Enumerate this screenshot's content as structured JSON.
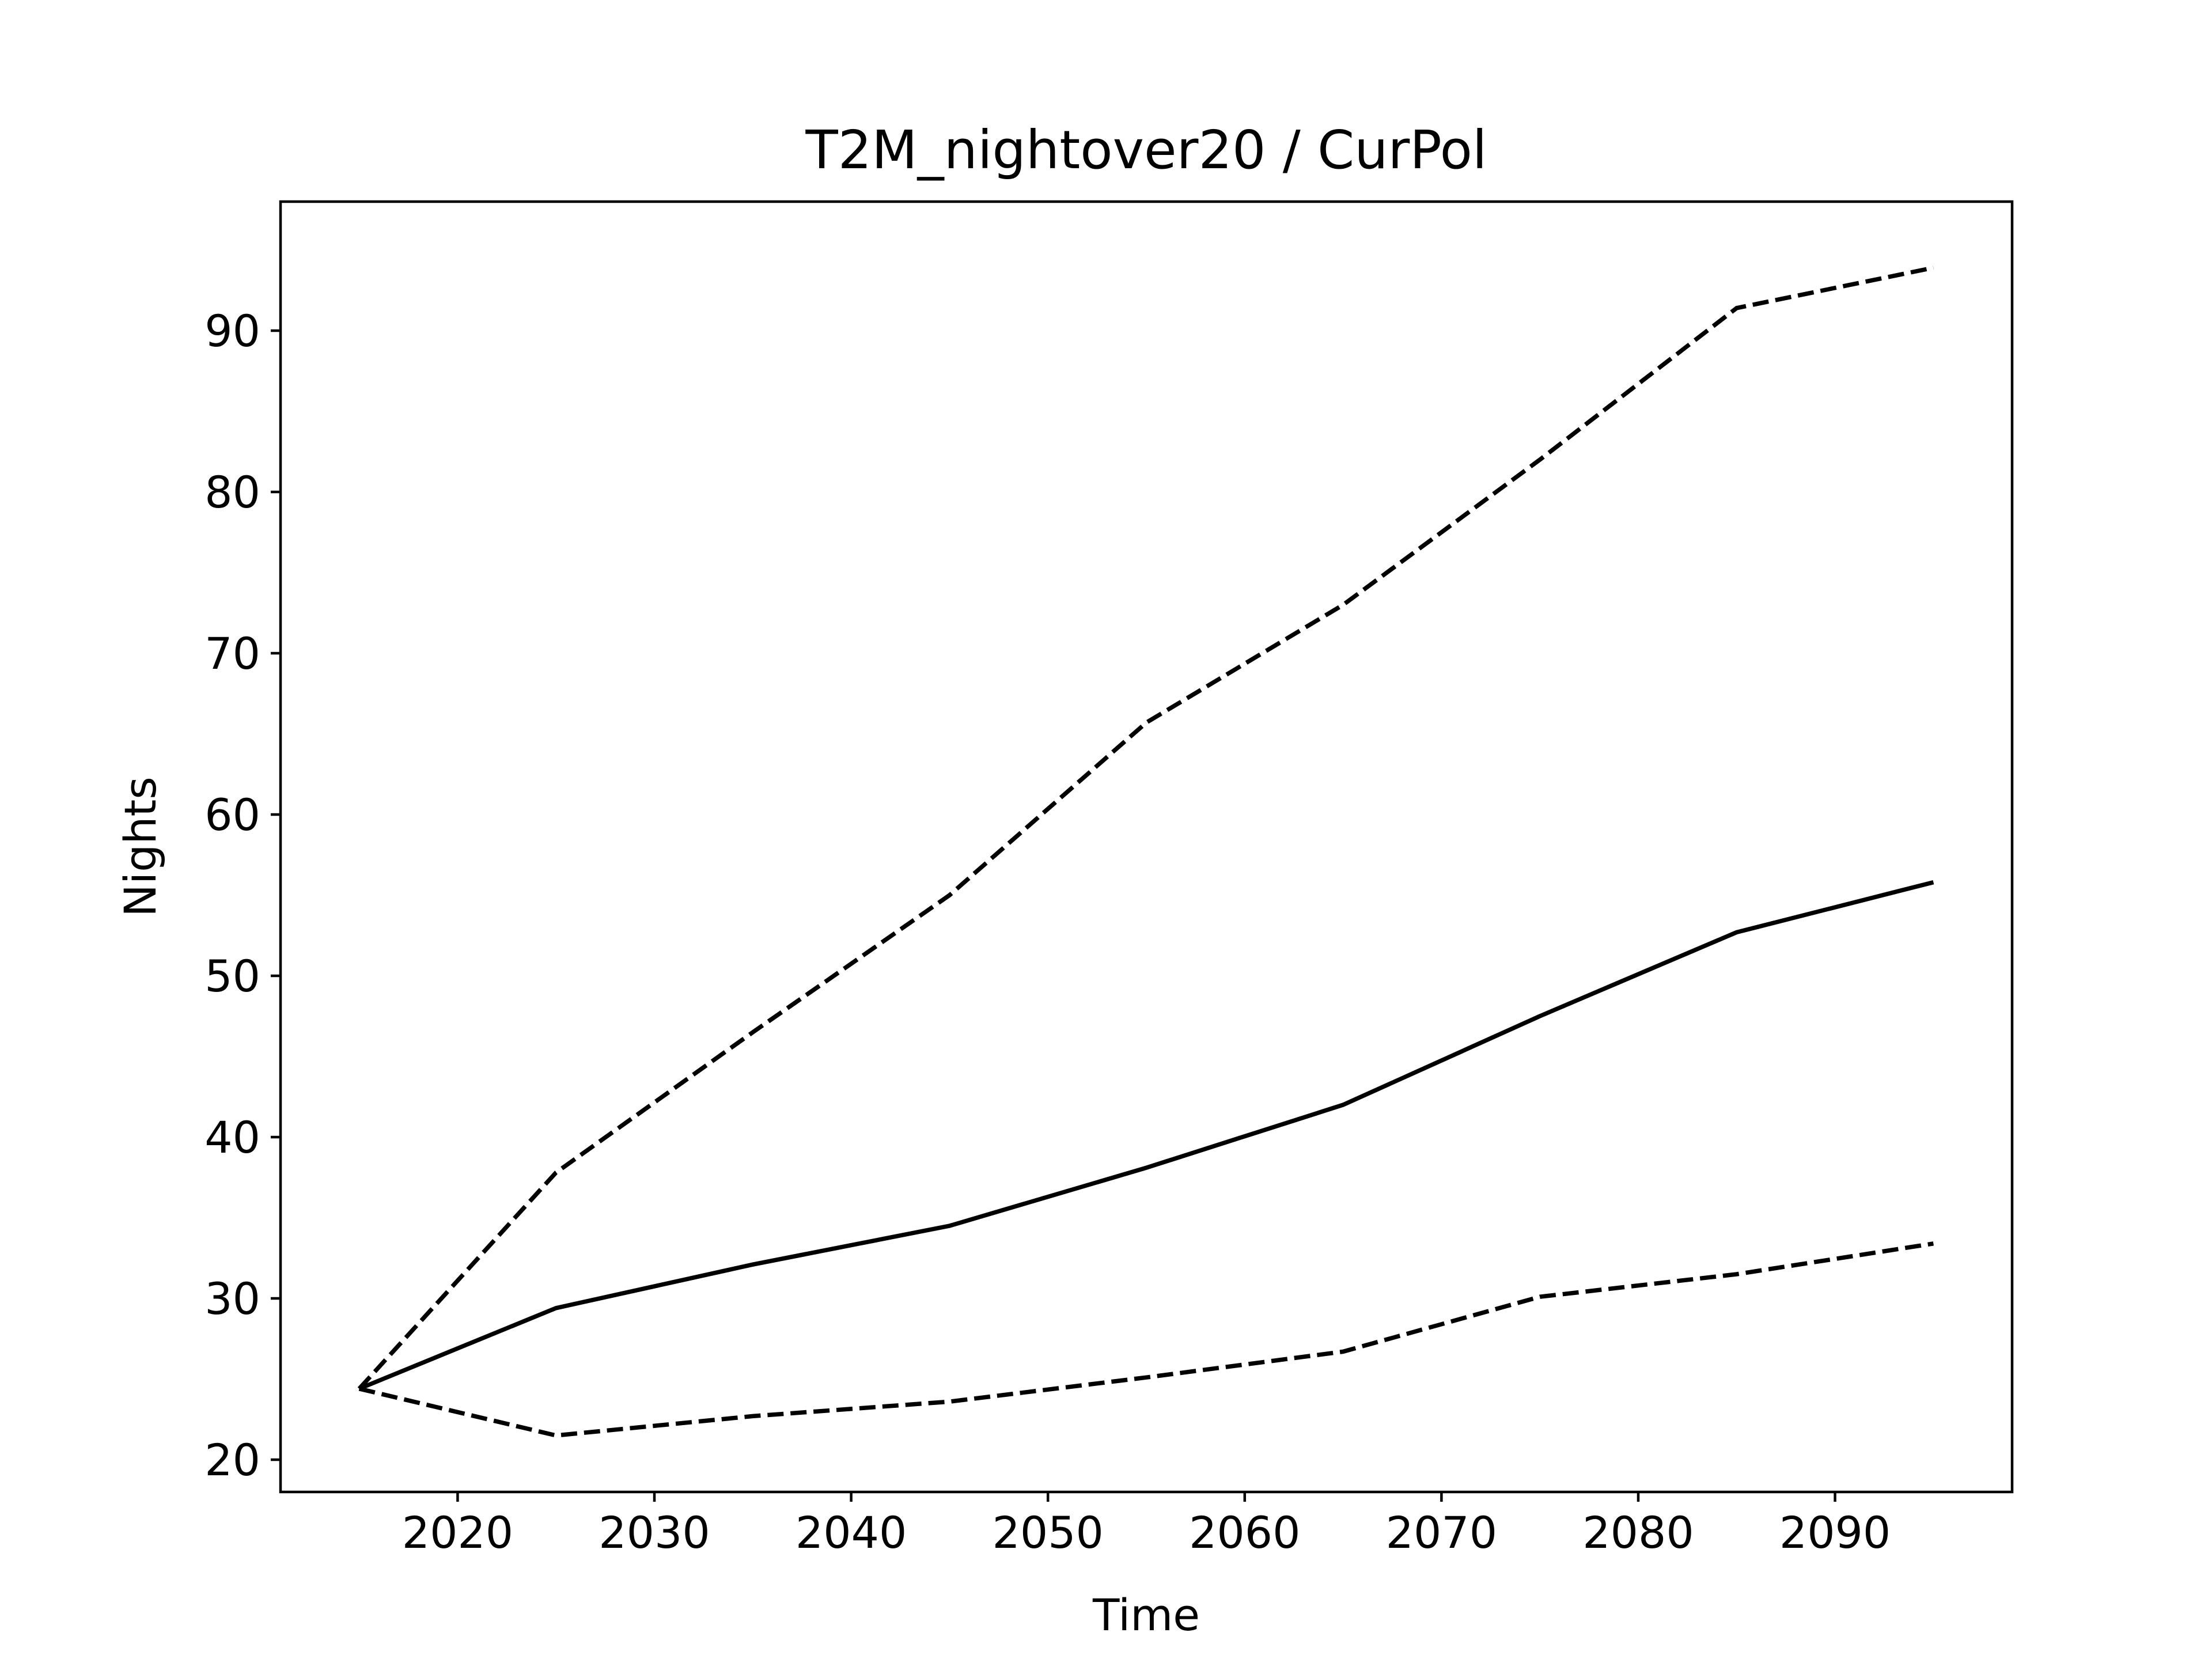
{
  "chart_data": {
    "type": "line",
    "title": "T2M_nightover20 / CurPol",
    "xlabel": "Time",
    "ylabel": "Nights",
    "xlim": [
      2011,
      2099
    ],
    "ylim": [
      18,
      98
    ],
    "x_ticks": [
      2020,
      2030,
      2040,
      2050,
      2060,
      2070,
      2080,
      2090
    ],
    "y_ticks": [
      20,
      30,
      40,
      50,
      60,
      70,
      80,
      90
    ],
    "grid": false,
    "legend": "none",
    "x": [
      2015,
      2025,
      2035,
      2045,
      2055,
      2065,
      2075,
      2085,
      2095
    ],
    "series": [
      {
        "style": "solid",
        "color": "#000000",
        "values": [
          24.4,
          29.4,
          32.1,
          34.5,
          38.1,
          42.0,
          47.5,
          52.7,
          55.8
        ]
      },
      {
        "style": "dashed",
        "color": "#000000",
        "values": [
          24.4,
          37.8,
          46.5,
          55.0,
          65.7,
          73.0,
          82.0,
          91.4,
          93.9
        ]
      },
      {
        "style": "dashed",
        "color": "#000000",
        "values": [
          24.4,
          21.5,
          22.7,
          23.6,
          25.1,
          26.7,
          30.1,
          31.5,
          33.4
        ]
      }
    ]
  }
}
